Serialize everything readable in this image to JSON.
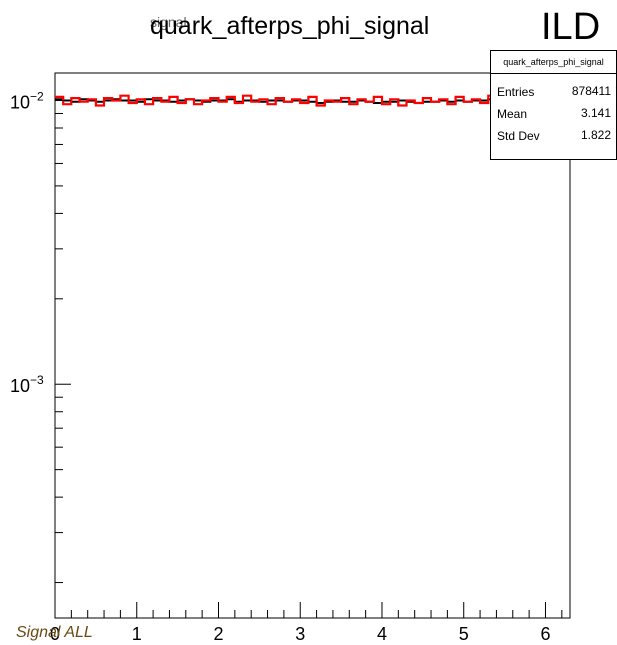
{
  "chart_data": {
    "type": "histogram",
    "title": "quark_afterps_phi_signal",
    "title_ghost": "signal",
    "experiment_label": "ILD",
    "footer_label": "Signal ALL",
    "x_ticks": [
      "0",
      "1",
      "2",
      "3",
      "4",
      "5",
      "6"
    ],
    "y_scale": "log",
    "y_tick_labels": [
      {
        "value": 0.01,
        "base": "10",
        "exp": "−2"
      },
      {
        "value": 0.001,
        "base": "10",
        "exp": "−3"
      }
    ],
    "xlim": [
      0,
      6.3
    ],
    "ylim": [
      0.00015,
      0.0125
    ],
    "stats_box": {
      "title": "quark_afterps_phi_signal",
      "rows": [
        {
          "label": "Entries",
          "value": "878411"
        },
        {
          "label": "Mean",
          "value": "3.141"
        },
        {
          "label": "Std Dev",
          "value": "1.822"
        }
      ]
    },
    "bin_width": 0.1,
    "series": [
      {
        "color": "#000000",
        "values": [
          0.0101,
          0.01,
          0.0099,
          0.0101,
          0.01,
          0.0099,
          0.01,
          0.0101,
          0.01,
          0.01,
          0.0099,
          0.0101,
          0.01,
          0.01,
          0.0099,
          0.01,
          0.0101,
          0.01,
          0.0099,
          0.01,
          0.01,
          0.0101,
          0.0099,
          0.01,
          0.01,
          0.0099,
          0.01,
          0.01,
          0.0099,
          0.01,
          0.01,
          0.0099,
          0.0098,
          0.0099,
          0.01,
          0.0099,
          0.0099,
          0.01,
          0.0099,
          0.0098,
          0.0099,
          0.0099,
          0.01,
          0.0099,
          0.0098,
          0.0099,
          0.0099,
          0.01,
          0.0099,
          0.01,
          0.0099,
          0.01,
          0.01,
          0.0101,
          0.01,
          0.01,
          0.0101,
          0.0102,
          0.0101,
          0.0102,
          0.0101,
          0.0101,
          0.0101
        ]
      },
      {
        "color": "#ff0000",
        "values": [
          0.0103,
          0.0097,
          0.0102,
          0.0099,
          0.0101,
          0.0096,
          0.0102,
          0.01,
          0.0104,
          0.0098,
          0.0101,
          0.0097,
          0.0102,
          0.0099,
          0.0103,
          0.0098,
          0.0101,
          0.0097,
          0.01,
          0.0102,
          0.0099,
          0.0103,
          0.0098,
          0.0104,
          0.0099,
          0.0101,
          0.0097,
          0.0102,
          0.0099,
          0.0101,
          0.0098,
          0.0103,
          0.0096,
          0.01,
          0.0099,
          0.0102,
          0.0097,
          0.0101,
          0.0099,
          0.0103,
          0.0097,
          0.0101,
          0.0096,
          0.01,
          0.0098,
          0.0102,
          0.0099,
          0.0101,
          0.0097,
          0.0103,
          0.0099,
          0.0101,
          0.0098,
          0.0104,
          0.0099,
          0.0102,
          0.01,
          0.0103,
          0.0101,
          0.0104,
          0.01,
          0.0103,
          0.0102
        ]
      }
    ]
  }
}
